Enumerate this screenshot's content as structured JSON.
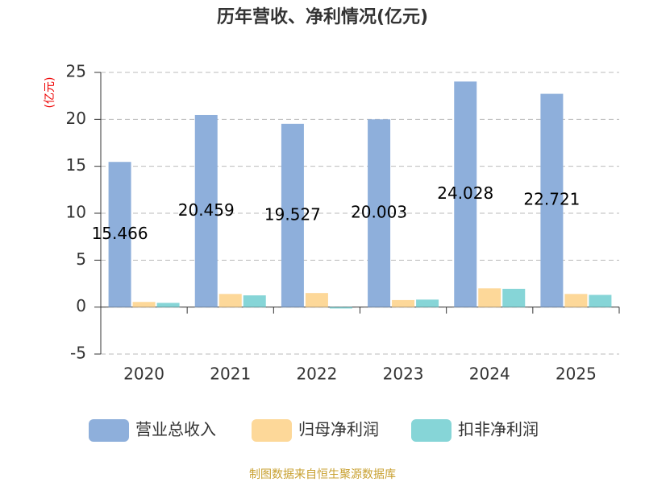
{
  "chart_data": {
    "type": "bar",
    "title": "历年营收、净利情况(亿元)",
    "y_label": "(亿元)",
    "categories": [
      "2020",
      "2021",
      "2022",
      "2023",
      "2024",
      "2025"
    ],
    "series": [
      {
        "name": "营业总收入",
        "color": "#8eafdb",
        "values": [
          15.466,
          20.459,
          19.527,
          20.003,
          24.028,
          22.721
        ],
        "show_labels": true
      },
      {
        "name": "归母净利润",
        "color": "#fdd899",
        "values": [
          0.55,
          1.4,
          1.5,
          0.75,
          2.0,
          1.4
        ],
        "show_labels": false
      },
      {
        "name": "扣非净利润",
        "color": "#86d5d7",
        "values": [
          0.45,
          1.25,
          -0.15,
          0.8,
          1.95,
          1.3
        ],
        "show_labels": false
      }
    ],
    "ylim": [
      -5,
      25
    ],
    "yticks": [
      -5,
      0,
      5,
      10,
      15,
      20,
      25
    ],
    "grid": true,
    "source": "制图数据来自恒生聚源数据库"
  }
}
